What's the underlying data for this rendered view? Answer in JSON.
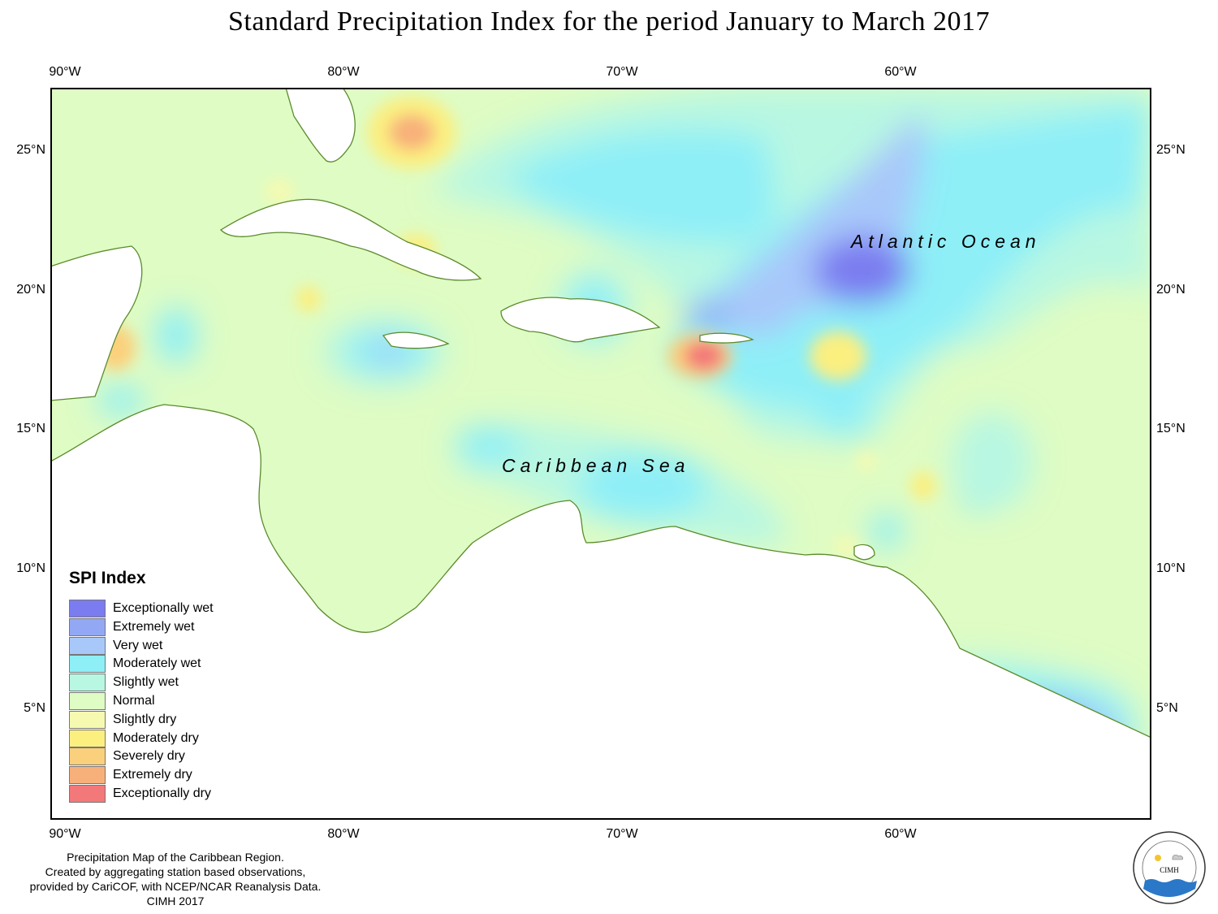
{
  "title": "Standard Precipitation Index for the period January to March 2017",
  "axes": {
    "lon_labels": [
      "90°W",
      "80°W",
      "70°W",
      "60°W"
    ],
    "lat_labels": [
      "25°N",
      "20°N",
      "15°N",
      "10°N",
      "5°N"
    ]
  },
  "map": {
    "ocean_labels": {
      "atlantic": "Atlantic Ocean",
      "caribbean": "Caribbean Sea"
    },
    "colors": {
      "land": "#ffffff",
      "coast": "#5c8a2c",
      "frame": "#000000"
    }
  },
  "legend": {
    "title": "SPI Index",
    "items": [
      {
        "label": "Exceptionally wet",
        "color": "#7a7cf0"
      },
      {
        "label": "Extremely wet",
        "color": "#93a8f5"
      },
      {
        "label": "Very wet",
        "color": "#a8c8fa"
      },
      {
        "label": "Moderately wet",
        "color": "#8eeff7"
      },
      {
        "label": "Slightly wet",
        "color": "#b8f7e2"
      },
      {
        "label": "Normal",
        "color": "#defcc4"
      },
      {
        "label": "Slightly dry",
        "color": "#f6fab0"
      },
      {
        "label": "Moderately dry",
        "color": "#fbef80"
      },
      {
        "label": "Severely dry",
        "color": "#fbd07c"
      },
      {
        "label": "Extremely dry",
        "color": "#f8b07a"
      },
      {
        "label": "Exceptionally dry",
        "color": "#f3787a"
      }
    ]
  },
  "footer": {
    "lines": [
      "Precipitation Map of the Caribbean Region.",
      "Created by aggregating station based observations,",
      "provided by CariCOF, with NCEP/NCAR Reanalysis Data.",
      "CIMH 2017"
    ]
  },
  "logo": {
    "text": "CIMH"
  }
}
